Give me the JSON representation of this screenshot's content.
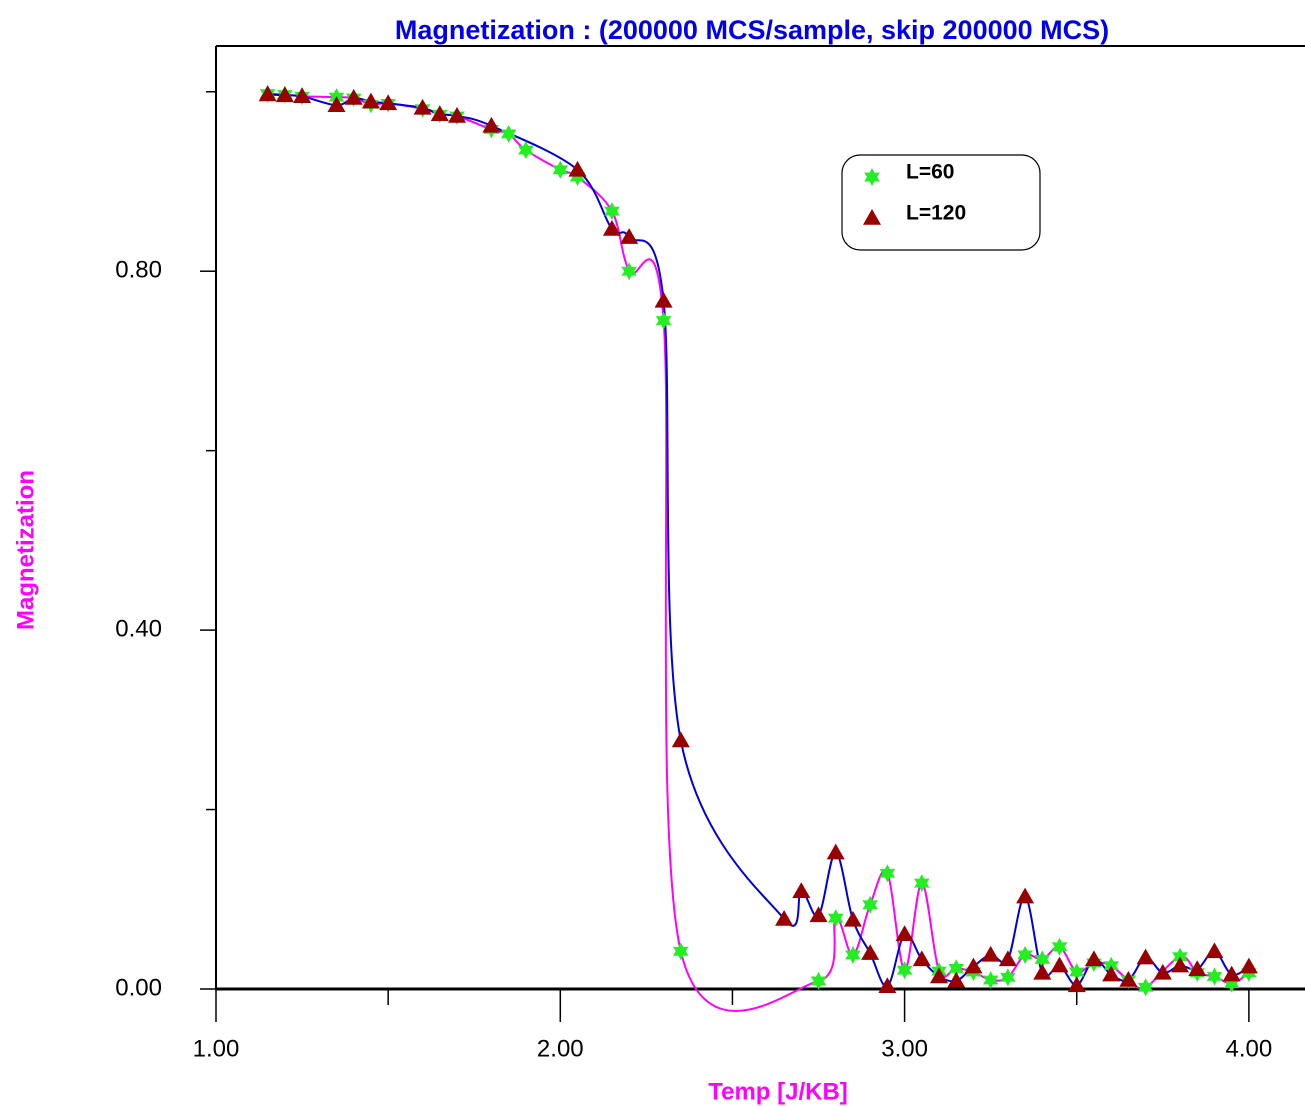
{
  "chart_data": {
    "type": "line",
    "title": "Magnetization : (200000 MCS/sample, skip 200000 MCS)",
    "xlabel": "Temp [J/KB]",
    "ylabel": "Magnetization",
    "xlim": [
      1.0,
      4.163
    ],
    "ylim": [
      0.0,
      1.051
    ],
    "xticks": [
      {
        "value": 1.0,
        "label": "1.00"
      },
      {
        "value": 1.5,
        "label": null
      },
      {
        "value": 2.0,
        "label": "2.00"
      },
      {
        "value": 2.5,
        "label": null
      },
      {
        "value": 3.0,
        "label": "3.00"
      },
      {
        "value": 3.5,
        "label": null
      },
      {
        "value": 4.0,
        "label": "4.00"
      }
    ],
    "yticks": [
      {
        "value": 0.0,
        "label": "0.00"
      },
      {
        "value": 0.2,
        "label": null
      },
      {
        "value": 0.4,
        "label": "0.40"
      },
      {
        "value": 0.6,
        "label": null
      },
      {
        "value": 0.8,
        "label": "0.80"
      },
      {
        "value": 1.0,
        "label": null
      }
    ],
    "legend_position": "upper right",
    "series": [
      {
        "name": "L=60",
        "color": "#22ee22",
        "line_color": "#ff00ff",
        "marker": "star",
        "x": [
          1.15,
          1.2,
          1.25,
          1.35,
          1.4,
          1.45,
          1.5,
          1.6,
          1.65,
          1.7,
          1.8,
          1.85,
          1.9,
          2.0,
          2.05,
          2.15,
          2.2,
          2.3,
          2.35,
          2.75,
          2.8,
          2.85,
          2.9,
          2.95,
          3.0,
          3.05,
          3.1,
          3.15,
          3.2,
          3.25,
          3.3,
          3.35,
          3.4,
          3.45,
          3.5,
          3.55,
          3.6,
          3.65,
          3.7,
          3.8,
          3.85,
          3.9,
          3.95,
          4.0
        ],
        "values": [
          0.998,
          0.997,
          0.995,
          0.994,
          0.993,
          0.986,
          0.987,
          0.981,
          0.975,
          0.973,
          0.958,
          0.953,
          0.935,
          0.913,
          0.905,
          0.867,
          0.8,
          0.745,
          0.042,
          0.009,
          0.079,
          0.038,
          0.094,
          0.129,
          0.021,
          0.118,
          0.02,
          0.023,
          0.019,
          0.01,
          0.013,
          0.038,
          0.033,
          0.047,
          0.019,
          0.029,
          0.026,
          0.01,
          0.002,
          0.036,
          0.018,
          0.014,
          0.006,
          0.018
        ]
      },
      {
        "name": "L=120",
        "color": "#990000",
        "line_color": "#0000dd",
        "marker": "triangle",
        "x": [
          1.15,
          1.2,
          1.25,
          1.35,
          1.4,
          1.45,
          1.5,
          1.6,
          1.65,
          1.7,
          1.8,
          2.05,
          2.15,
          2.2,
          2.3,
          2.35,
          2.65,
          2.7,
          2.75,
          2.8,
          2.85,
          2.9,
          2.95,
          3.0,
          3.05,
          3.1,
          3.15,
          3.2,
          3.25,
          3.3,
          3.35,
          3.4,
          3.45,
          3.5,
          3.55,
          3.6,
          3.65,
          3.7,
          3.75,
          3.8,
          3.85,
          3.9,
          3.95,
          4.0
        ],
        "values": [
          0.997,
          0.996,
          0.995,
          0.985,
          0.993,
          0.989,
          0.987,
          0.982,
          0.975,
          0.973,
          0.962,
          0.913,
          0.847,
          0.838,
          0.767,
          0.277,
          0.078,
          0.109,
          0.082,
          0.152,
          0.077,
          0.04,
          0.003,
          0.061,
          0.033,
          0.014,
          0.009,
          0.025,
          0.038,
          0.033,
          0.103,
          0.018,
          0.026,
          0.004,
          0.033,
          0.016,
          0.01,
          0.035,
          0.018,
          0.026,
          0.022,
          0.042,
          0.016,
          0.025
        ]
      }
    ]
  }
}
